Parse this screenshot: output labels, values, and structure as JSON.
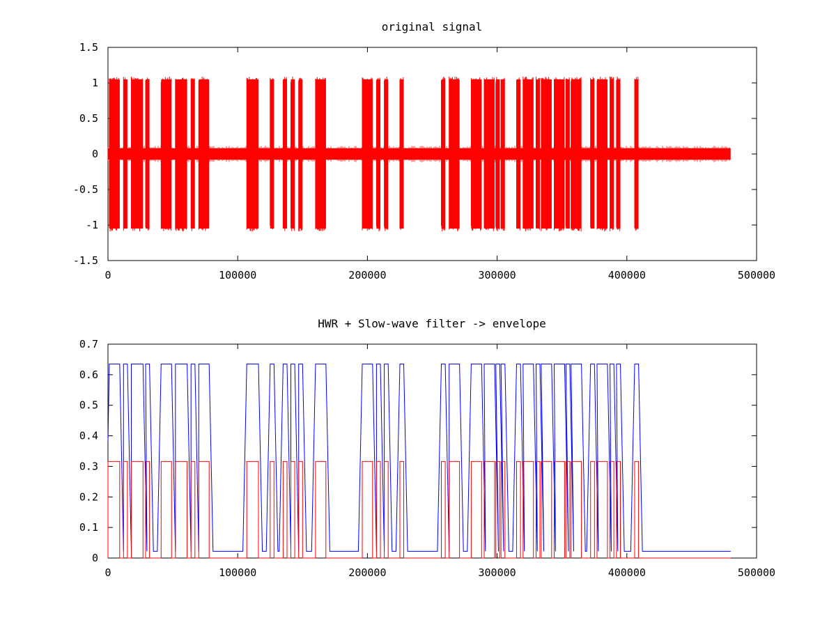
{
  "chart_data": [
    {
      "type": "line",
      "title": "original signal",
      "xlabel": "",
      "ylabel": "",
      "xlim": [
        0,
        500000
      ],
      "ylim": [
        -1.5,
        1.5
      ],
      "xticks": [
        0,
        100000,
        200000,
        300000,
        400000,
        500000
      ],
      "xtick_labels": [
        "0",
        "100000",
        "200000",
        "300000",
        "400000",
        "500000"
      ],
      "yticks": [
        -1.5,
        -1,
        -0.5,
        0,
        0.5,
        1,
        1.5
      ],
      "ytick_labels": [
        "-1.5",
        "-1",
        "-0.5",
        "0",
        "0.5",
        "1",
        "1.5"
      ],
      "grid": false,
      "signal_end": 480000,
      "on_amplitude": 1.05,
      "noise_amplitude": 0.08,
      "bursts": [
        [
          1000,
          9000
        ],
        [
          12000,
          15000
        ],
        [
          18000,
          27000
        ],
        [
          29000,
          32000
        ],
        [
          41000,
          49000
        ],
        [
          52000,
          61000
        ],
        [
          64000,
          67000
        ],
        [
          70000,
          78000
        ],
        [
          107000,
          116000
        ],
        [
          125000,
          128000
        ],
        [
          135000,
          138000
        ],
        [
          141000,
          144000
        ],
        [
          147000,
          150000
        ],
        [
          160000,
          168000
        ],
        [
          196000,
          204000
        ],
        [
          207000,
          210000
        ],
        [
          213000,
          216000
        ],
        [
          225000,
          228000
        ],
        [
          257000,
          260000
        ],
        [
          263000,
          271000
        ],
        [
          280000,
          288000
        ],
        [
          290000,
          298000
        ],
        [
          299000,
          302000
        ],
        [
          303000,
          306000
        ],
        [
          315000,
          318000
        ],
        [
          320000,
          328000
        ],
        [
          330000,
          333000
        ],
        [
          334000,
          342000
        ],
        [
          344000,
          352000
        ],
        [
          353000,
          356000
        ],
        [
          357000,
          365000
        ],
        [
          372000,
          375000
        ],
        [
          377000,
          385000
        ],
        [
          387000,
          390000
        ],
        [
          392000,
          395000
        ],
        [
          406000,
          409000
        ]
      ],
      "series": [
        {
          "color": "#ff0000"
        }
      ]
    },
    {
      "type": "line",
      "title": "HWR + Slow-wave filter -> envelope",
      "xlabel": "",
      "ylabel": "",
      "xlim": [
        0,
        500000
      ],
      "ylim": [
        0,
        0.7
      ],
      "xticks": [
        0,
        100000,
        200000,
        300000,
        400000,
        500000
      ],
      "xtick_labels": [
        "0",
        "100000",
        "200000",
        "300000",
        "400000",
        "500000"
      ],
      "yticks": [
        0,
        0.1,
        0.2,
        0.3,
        0.4,
        0.5,
        0.6,
        0.7
      ],
      "ytick_labels": [
        "0",
        "0.1",
        "0.2",
        "0.3",
        "0.4",
        "0.5",
        "0.6",
        "0.7"
      ],
      "grid": false,
      "signal_end": 480000,
      "series": [
        {
          "color": "#0000ff",
          "high": 0.635,
          "low": 0.022
        },
        {
          "color": "#ff0000",
          "high": 0.316,
          "low": 0.0
        }
      ]
    }
  ]
}
